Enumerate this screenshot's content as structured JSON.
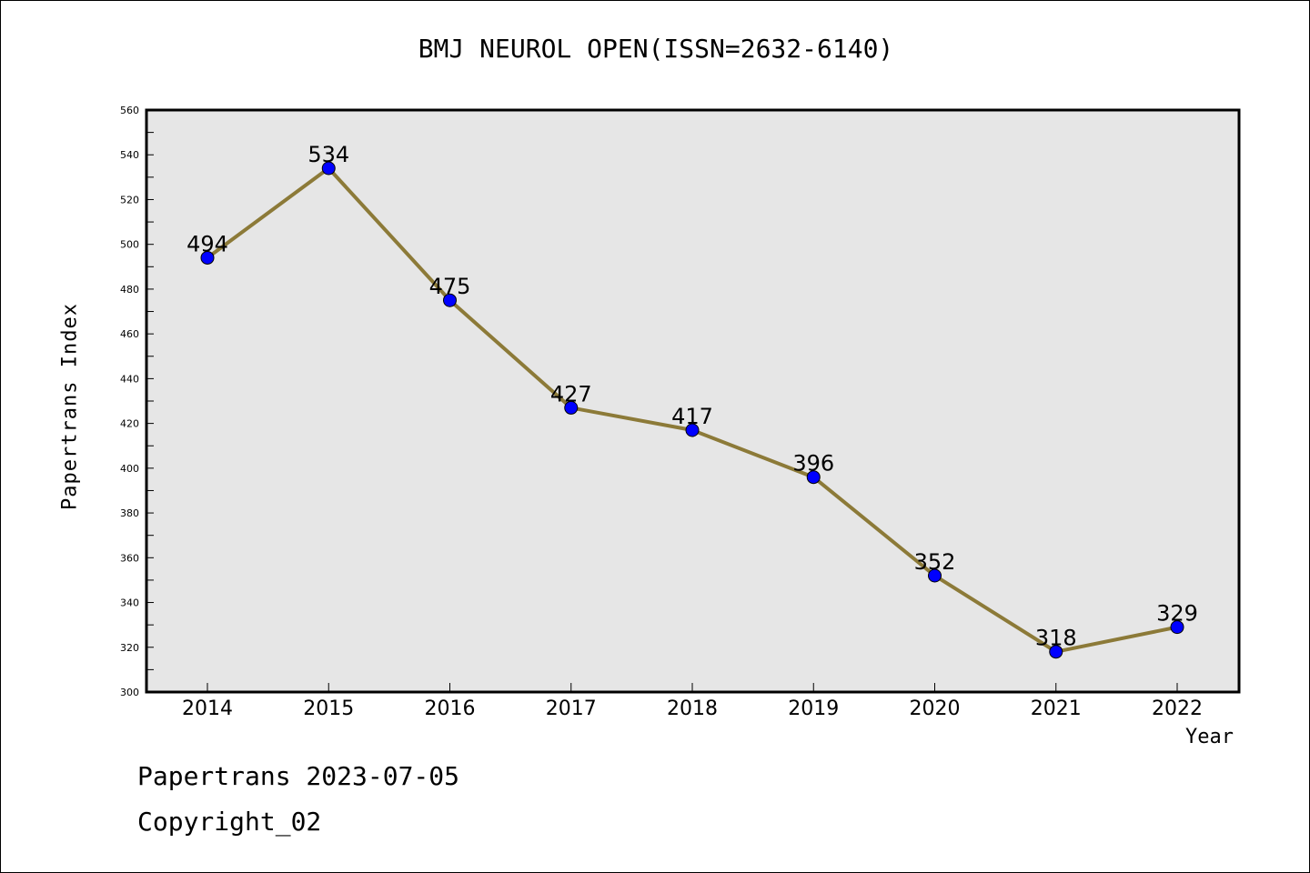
{
  "chart_data": {
    "type": "line",
    "title": "BMJ NEUROL OPEN(ISSN=2632-6140)",
    "xlabel": "Year",
    "ylabel": "Papertrans Index",
    "categories": [
      "2014",
      "2015",
      "2016",
      "2017",
      "2018",
      "2019",
      "2020",
      "2021",
      "2022"
    ],
    "series": [
      {
        "values": [
          494,
          534,
          475,
          427,
          417,
          396,
          352,
          318,
          329
        ]
      }
    ],
    "data_labels": [
      "494",
      "534",
      "475",
      "427",
      "417",
      "396",
      "352",
      "318",
      "329"
    ],
    "ylim": [
      300,
      560
    ],
    "yticks": [
      300,
      320,
      340,
      360,
      380,
      400,
      420,
      440,
      460,
      480,
      500,
      520,
      540,
      560
    ],
    "ytick_labels": [
      "300",
      "320",
      "340",
      "360",
      "380",
      "400",
      "420",
      "440",
      "460",
      "480",
      "500",
      "520",
      "540",
      "560"
    ],
    "grid": false,
    "colors": {
      "plot_background": "#e6e6e6",
      "line": "#8c7a38",
      "marker": "#0000ff"
    }
  },
  "footer": {
    "date_text": "Papertrans 2023-07-05",
    "copyright_text": "Copyright_02"
  }
}
